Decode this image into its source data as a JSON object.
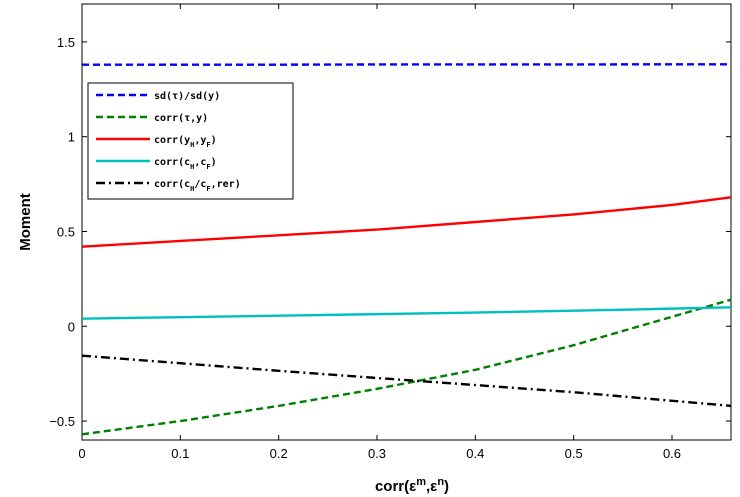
{
  "chart_data": {
    "type": "line",
    "title": "",
    "xlabel": "corr(ε^m,ε^n)",
    "xlabel_parts": {
      "base": "corr(ε",
      "sup1": "m",
      "mid": ",ε",
      "sup2": "n",
      "end": ")"
    },
    "ylabel": "Moment",
    "xlim": [
      0,
      0.66
    ],
    "ylim": [
      -0.6,
      1.7
    ],
    "xticks": [
      0,
      0.1,
      0.2,
      0.3,
      0.4,
      0.5,
      0.6
    ],
    "xtick_labels": [
      "0",
      "0.1",
      "0.2",
      "0.3",
      "0.4",
      "0.5",
      "0.6"
    ],
    "yticks": [
      -0.5,
      0,
      0.5,
      1,
      1.5
    ],
    "ytick_labels": [
      "−0.5",
      "0",
      "0.5",
      "1",
      "1.5"
    ],
    "grid": false,
    "legend_position": "upper-left",
    "x": [
      0,
      0.1,
      0.2,
      0.3,
      0.4,
      0.5,
      0.6,
      0.66
    ],
    "series": [
      {
        "name": "sd(τ)/sd(y)",
        "legend": [
          {
            "t": "sd(τ)/sd(y)"
          }
        ],
        "color": "#0000ff",
        "dash": "dashed",
        "values": [
          1.38,
          1.38,
          1.38,
          1.381,
          1.381,
          1.381,
          1.382,
          1.382
        ]
      },
      {
        "name": "corr(τ,y)",
        "legend": [
          {
            "t": "corr(τ,y)"
          }
        ],
        "color": "#008000",
        "dash": "dashed",
        "values": [
          -0.57,
          -0.5,
          -0.42,
          -0.33,
          -0.23,
          -0.1,
          0.05,
          0.14
        ]
      },
      {
        "name": "corr(y_H,y_F)",
        "legend": [
          {
            "t": "corr(y"
          },
          {
            "t": "H",
            "sub": true
          },
          {
            "t": ",y"
          },
          {
            "t": "F",
            "sub": true
          },
          {
            "t": ")"
          }
        ],
        "color": "#ff0000",
        "dash": "solid",
        "values": [
          0.42,
          0.45,
          0.48,
          0.51,
          0.55,
          0.59,
          0.64,
          0.68
        ]
      },
      {
        "name": "corr(c_H,c_F)",
        "legend": [
          {
            "t": "corr(c"
          },
          {
            "t": "H",
            "sub": true
          },
          {
            "t": ",c"
          },
          {
            "t": "F",
            "sub": true
          },
          {
            "t": ")"
          }
        ],
        "color": "#00bfbf",
        "dash": "solid",
        "values": [
          0.04,
          0.048,
          0.056,
          0.064,
          0.072,
          0.082,
          0.093,
          0.1
        ]
      },
      {
        "name": "corr(c_H/c_F,rer)",
        "legend": [
          {
            "t": "corr(c"
          },
          {
            "t": "H",
            "sub": true
          },
          {
            "t": "/c"
          },
          {
            "t": "F",
            "sub": true
          },
          {
            "t": ",rer)"
          }
        ],
        "color": "#000000",
        "dash": "dashdot",
        "values": [
          -0.155,
          -0.195,
          -0.235,
          -0.273,
          -0.31,
          -0.348,
          -0.393,
          -0.42
        ]
      }
    ]
  }
}
